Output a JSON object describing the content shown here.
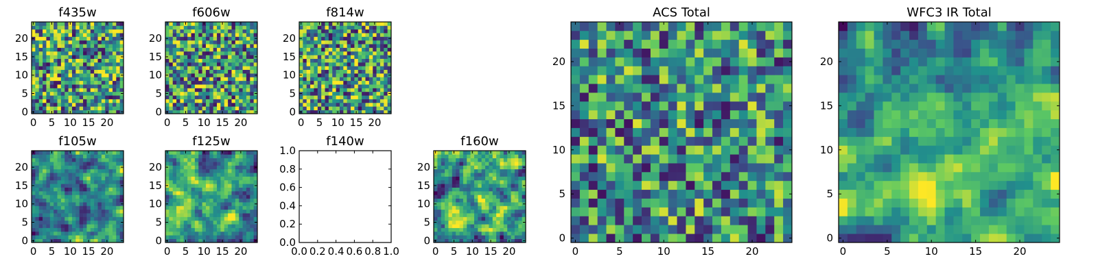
{
  "figure": {
    "colormap": "viridis",
    "colormap_stops": [
      "#440154",
      "#3b528b",
      "#21918c",
      "#5ec962",
      "#fde725"
    ],
    "axis_color": "#000000",
    "background": "#ffffff"
  },
  "chart_data": [
    {
      "id": "f435w",
      "type": "heatmap",
      "title": "f435w",
      "shape": [
        25,
        25
      ],
      "cell_rows": 25,
      "cell_cols": 25,
      "seed": 11,
      "smooth": 0,
      "shift": 0.05,
      "spread": 1.0,
      "xticks": [
        0,
        5,
        10,
        15,
        20
      ],
      "yticks": [
        0,
        5,
        10,
        15,
        20
      ],
      "xlim": [
        0,
        24
      ],
      "ylim": [
        0,
        24
      ]
    },
    {
      "id": "f606w",
      "type": "heatmap",
      "title": "f606w",
      "shape": [
        25,
        25
      ],
      "cell_rows": 25,
      "cell_cols": 25,
      "seed": 23,
      "smooth": 0,
      "shift": 0.05,
      "spread": 1.0,
      "xticks": [
        0,
        5,
        10,
        15,
        20
      ],
      "yticks": [
        0,
        5,
        10,
        15,
        20
      ],
      "xlim": [
        0,
        24
      ],
      "ylim": [
        0,
        24
      ]
    },
    {
      "id": "f814w",
      "type": "heatmap",
      "title": "f814w",
      "shape": [
        25,
        25
      ],
      "cell_rows": 25,
      "cell_cols": 25,
      "seed": 37,
      "smooth": 0,
      "shift": 0.05,
      "spread": 1.0,
      "xticks": [
        0,
        5,
        10,
        15,
        20
      ],
      "yticks": [
        0,
        5,
        10,
        15,
        20
      ],
      "xlim": [
        0,
        24
      ],
      "ylim": [
        0,
        24
      ]
    },
    {
      "id": "f105w",
      "type": "heatmap",
      "title": "f105w",
      "shape": [
        25,
        25
      ],
      "cell_rows": 25,
      "cell_cols": 25,
      "seed": 41,
      "smooth": 1,
      "shift": 0.0,
      "spread": 1.1,
      "xticks": [
        0,
        5,
        10,
        15,
        20
      ],
      "yticks": [
        0,
        5,
        10,
        15,
        20
      ],
      "xlim": [
        0,
        24
      ],
      "ylim": [
        0,
        24
      ]
    },
    {
      "id": "f125w",
      "type": "heatmap",
      "title": "f125w",
      "shape": [
        25,
        25
      ],
      "cell_rows": 25,
      "cell_cols": 25,
      "seed": 53,
      "smooth": 1,
      "shift": 0.05,
      "spread": 1.1,
      "xticks": [
        0,
        5,
        10,
        15,
        20
      ],
      "yticks": [
        0,
        5,
        10,
        15,
        20
      ],
      "xlim": [
        0,
        24
      ],
      "ylim": [
        0,
        24
      ]
    },
    {
      "id": "f140w",
      "type": "empty",
      "title": "f140w",
      "xlim": [
        0,
        1
      ],
      "ylim": [
        0,
        1
      ],
      "xticks": [
        "0.0",
        "0.2",
        "0.4",
        "0.6",
        "0.8",
        "1.0"
      ],
      "yticks": [
        "0.0",
        "0.2",
        "0.4",
        "0.6",
        "0.8",
        "1.0"
      ]
    },
    {
      "id": "f160w",
      "type": "heatmap",
      "title": "f160w",
      "shape": [
        25,
        25
      ],
      "cell_rows": 25,
      "cell_cols": 25,
      "seed": 67,
      "smooth": 1,
      "shift": 0.05,
      "spread": 1.2,
      "xticks": [
        0,
        5,
        10,
        15,
        20
      ],
      "yticks": [
        0,
        5,
        10,
        15,
        20
      ],
      "xlim": [
        0,
        24
      ],
      "ylim": [
        0,
        24
      ]
    },
    {
      "id": "acs-total",
      "type": "heatmap",
      "title": "ACS Total",
      "shape": [
        25,
        25
      ],
      "cell_rows": 25,
      "cell_cols": 25,
      "seed": 79,
      "smooth": 0,
      "shift": 0.0,
      "spread": 0.9,
      "xticks": [
        0,
        5,
        10,
        15,
        20
      ],
      "yticks": [
        0,
        5,
        10,
        15,
        20
      ],
      "xlim": [
        0,
        24
      ],
      "ylim": [
        0,
        24
      ]
    },
    {
      "id": "wfc3-ir-total",
      "type": "heatmap",
      "title": "WFC3 IR Total",
      "shape": [
        25,
        25
      ],
      "cell_rows": 25,
      "cell_cols": 25,
      "seed": 97,
      "smooth": 1,
      "shift": 0.0,
      "spread": 1.0,
      "gradient": 0.25,
      "xticks": [
        0,
        5,
        10,
        15,
        20
      ],
      "yticks": [
        0,
        5,
        10,
        15,
        20
      ],
      "xlim": [
        0,
        24
      ],
      "ylim": [
        0,
        24
      ]
    }
  ]
}
